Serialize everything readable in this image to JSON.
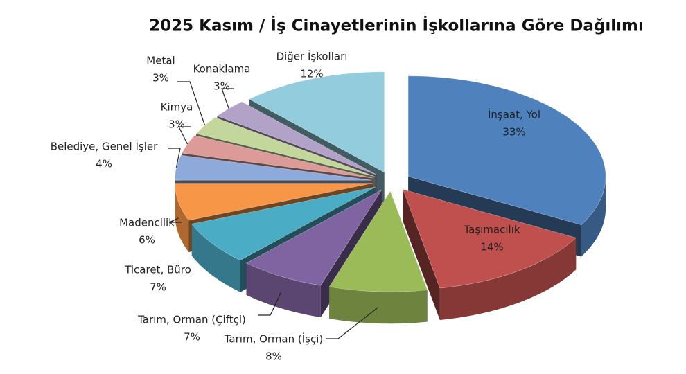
{
  "chart_data": {
    "type": "pie3d",
    "title": "2025 Kasım / İş Cinayetlerinin İşkollarına Göre Dağılımı",
    "categories": [
      "İnşaat, Yol",
      "Taşımacılık",
      "Tarım, Orman (İşçi)",
      "Tarım, Orman (Çiftçi)",
      "Ticaret, Büro",
      "Madencilik",
      "Belediye, Genel İşler",
      "Kimya",
      "Metal",
      "Konaklama",
      "Diğer İşkolları"
    ],
    "values": [
      33,
      14,
      8,
      7,
      7,
      6,
      4,
      3,
      3,
      3,
      12
    ],
    "value_labels": [
      "33%",
      "14%",
      "8%",
      "7%",
      "7%",
      "6%",
      "4%",
      "3%",
      "3%",
      "3%",
      "12%"
    ],
    "colors": [
      "#4f81bd",
      "#c0504d",
      "#9bbb59",
      "#8064a2",
      "#4bacc6",
      "#f79646",
      "#8eaadb",
      "#dc9a98",
      "#c3d69b",
      "#b3a2c7",
      "#93cddd"
    ]
  }
}
